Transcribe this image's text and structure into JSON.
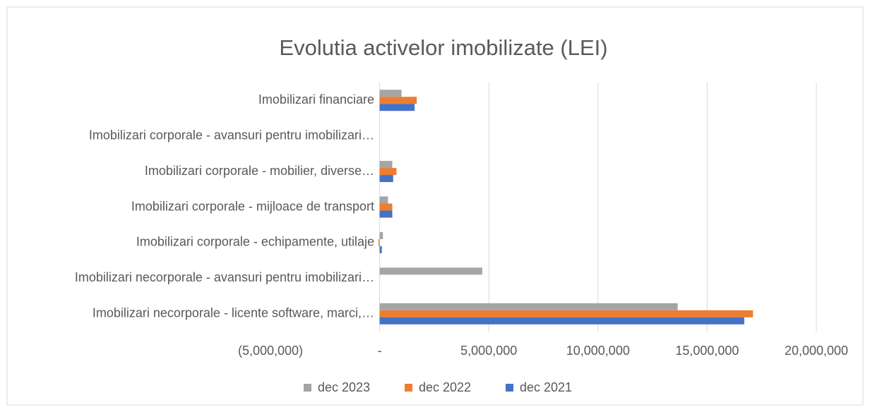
{
  "chart_data": {
    "type": "hbar",
    "title": "Evolutia activelor imobilizate (LEI)",
    "categories": [
      "Imobilizari financiare",
      "Imobilizari corporale - avansuri pentru imobilizari…",
      "Imobilizari corporale - mobilier, diverse…",
      "Imobilizari corporale - mijloace de transport",
      "Imobilizari corporale - echipamente, utilaje",
      "Imobilizari necorporale - avansuri pentru imobilizari…",
      "Imobilizari necorporale - licente software, marci,…"
    ],
    "series": [
      {
        "name": "dec 2023",
        "color": "#a5a5a5",
        "values": [
          1000000,
          0,
          580000,
          380000,
          150000,
          4700000,
          13650000
        ]
      },
      {
        "name": "dec 2022",
        "color": "#ed7d31",
        "values": [
          1700000,
          0,
          770000,
          580000,
          -50000,
          0,
          17100000
        ]
      },
      {
        "name": "dec 2021",
        "color": "#4472c4",
        "values": [
          1600000,
          0,
          620000,
          580000,
          100000,
          0,
          16700000
        ]
      }
    ],
    "xlim": [
      -5000000,
      20000000
    ],
    "xticks": [
      {
        "value": -5000000,
        "label": "(5,000,000)"
      },
      {
        "value": 0,
        "label": "-"
      },
      {
        "value": 5000000,
        "label": "5,000,000"
      },
      {
        "value": 10000000,
        "label": "10,000,000"
      },
      {
        "value": 15000000,
        "label": "15,000,000"
      },
      {
        "value": 20000000,
        "label": "20,000,000"
      }
    ],
    "grid": true,
    "legend": "bottom"
  }
}
